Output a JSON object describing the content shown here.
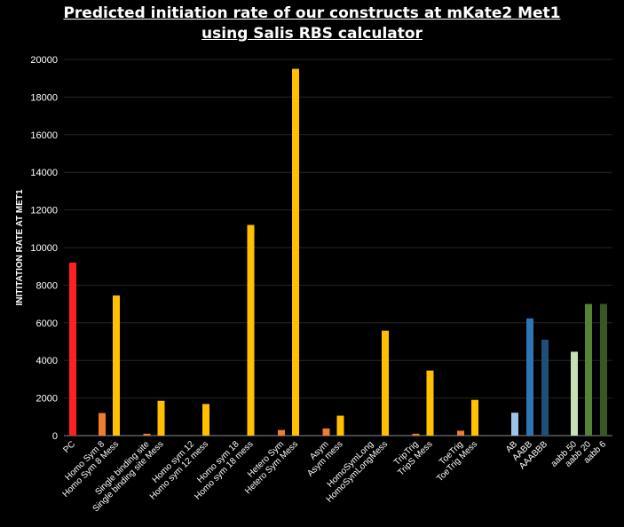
{
  "chart_data": {
    "type": "bar",
    "title_line1": "Predicted initiation rate of our constructs at mKate2 Met1",
    "title_line2": "using Salis RBS calculator",
    "xlabel": "",
    "ylabel": "INITITATION RATE AT MET1",
    "ylim": [
      0,
      20000
    ],
    "yticks": [
      0,
      2000,
      4000,
      6000,
      8000,
      10000,
      12000,
      14000,
      16000,
      18000,
      20000
    ],
    "grid": true,
    "legend": "none",
    "bars": [
      {
        "label": "PC",
        "value": 9200,
        "color": "#ff2020"
      },
      {
        "label": "Homo Sym 8",
        "value": 1200,
        "color": "#ed7d31"
      },
      {
        "label": "Homo Sym 8 Mess",
        "value": 7450,
        "color": "#ffc000"
      },
      {
        "label": "Single binding site",
        "value": 100,
        "color": "#ed7d31"
      },
      {
        "label": "Single binding site Mess",
        "value": 1850,
        "color": "#ffc000"
      },
      {
        "label": "Homo sym 12",
        "value": 0,
        "color": "#ed7d31"
      },
      {
        "label": "Homo sym 12 mess",
        "value": 1680,
        "color": "#ffc000"
      },
      {
        "label": "Homo sym 18",
        "value": 0,
        "color": "#ed7d31"
      },
      {
        "label": "Homo sym 18 mess",
        "value": 11200,
        "color": "#ffc000"
      },
      {
        "label": "Hetero Sym",
        "value": 300,
        "color": "#ed7d31"
      },
      {
        "label": "Hetero Sym Mess",
        "value": 19500,
        "color": "#ffc000"
      },
      {
        "label": "Asym",
        "value": 380,
        "color": "#ed7d31"
      },
      {
        "label": "Asym mess",
        "value": 1060,
        "color": "#ffc000"
      },
      {
        "label": "HomoSymLong",
        "value": 0,
        "color": "#ed7d31"
      },
      {
        "label": "HomoSymLongMess",
        "value": 5580,
        "color": "#ffc000"
      },
      {
        "label": "TripTrig",
        "value": 100,
        "color": "#ed7d31"
      },
      {
        "label": "TripS Mess",
        "value": 3460,
        "color": "#ffc000"
      },
      {
        "label": "ToeTrig",
        "value": 260,
        "color": "#ed7d31"
      },
      {
        "label": "ToeTrig Mess",
        "value": 1900,
        "color": "#ffc000"
      },
      {
        "label": "AB",
        "value": 1220,
        "color": "#9dc3e6"
      },
      {
        "label": "AABB",
        "value": 6230,
        "color": "#2e75b6"
      },
      {
        "label": "AAABBB",
        "value": 5100,
        "color": "#1f4e79"
      },
      {
        "label": "aabb 50",
        "value": 4460,
        "color": "#c5e0b4"
      },
      {
        "label": "aabb 20",
        "value": 7000,
        "color": "#548235"
      },
      {
        "label": "aabb 6",
        "value": 7000,
        "color": "#385723"
      }
    ]
  }
}
